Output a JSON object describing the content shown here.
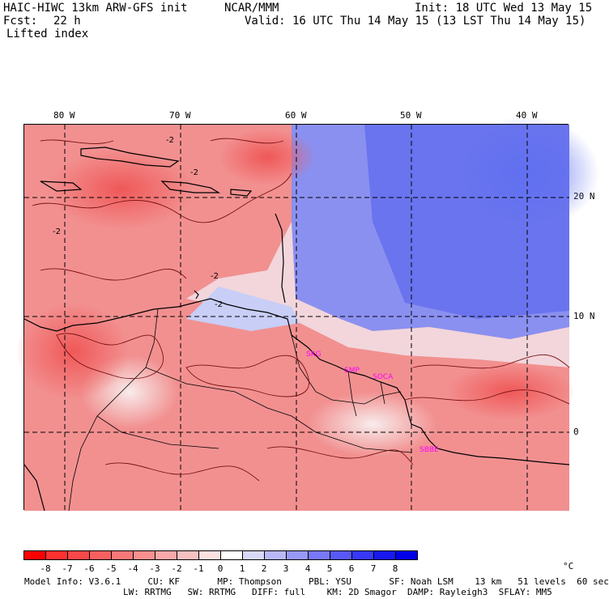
{
  "header": {
    "title": "HAIC-HIWC 13km ARW-GFS init",
    "org": "NCAR/MMM",
    "init": "Init: 18 UTC Wed 13 May 15",
    "fcst_label": "Fcst:",
    "fcst_value": "22 h",
    "valid": "Valid: 16 UTC Thu 14 May 15 (13 LST Thu 14 May 15)",
    "field": "Lifted index"
  },
  "map": {
    "lon_labels": [
      "80 W",
      "70 W",
      "60 W",
      "50 W",
      "40 W"
    ],
    "lat_labels": [
      "20 N",
      "10 N",
      "0"
    ],
    "stations": [
      "SKG",
      "SMP",
      "SOCA",
      "SBBE"
    ],
    "contour_labels": [
      "-2",
      "-2",
      "-2",
      "-2",
      "-2"
    ],
    "colors": {
      "warm": "#f08080",
      "cool": "#7080f0",
      "station": "#ff00ff"
    }
  },
  "colorbar": {
    "labels": [
      "-8",
      "-7",
      "-6",
      "-5",
      "-4",
      "-3",
      "-2",
      "-1",
      "0",
      "1",
      "2",
      "3",
      "4",
      "5",
      "6",
      "7",
      "8"
    ],
    "unit": "°C",
    "colors": [
      "#ff0000",
      "#ff3030",
      "#f84848",
      "#f86060",
      "#f87878",
      "#f89090",
      "#f8a8a8",
      "#f8c0c0",
      "#fce0e0",
      "#ffffff",
      "#d8d8f8",
      "#b8b8f8",
      "#9898f8",
      "#7878f8",
      "#5858f8",
      "#3838f8",
      "#1818f0",
      "#0000e8"
    ]
  },
  "footer": {
    "line1": "Model Info: V3.6.1     CU: KF       MP: Thompson     PBL: YSU       SF: Noah LSM    13 km   51 levels  60 sec",
    "line2": "LW: RRTMG   SW: RRTMG   DIFF: full    KM: 2D Smagor  DAMP: Rayleigh3  SFLAY: MM5"
  }
}
